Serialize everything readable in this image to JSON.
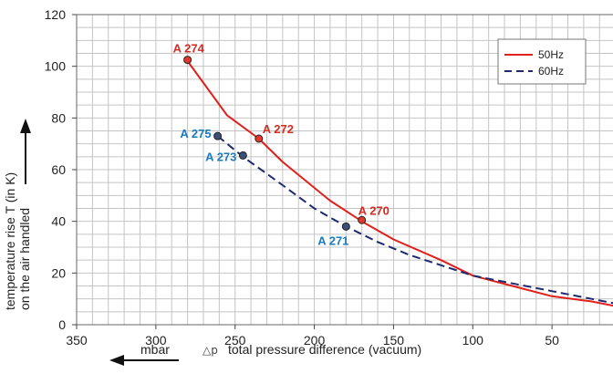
{
  "chart_data": {
    "type": "line",
    "xlabel_unit": "mbar",
    "xlabel_symbol": "△p",
    "xlabel": "total pressure difference (vacuum)",
    "ylabel_line1": "temperature rise T (in K)",
    "ylabel_line2": "on the air handled",
    "xlim": [
      350,
      0
    ],
    "ylim": [
      0,
      120
    ],
    "x_ticks": [
      "350",
      "300",
      "250",
      "200",
      "150",
      "100",
      "50",
      "0"
    ],
    "y_ticks": [
      "0",
      "20",
      "40",
      "60",
      "80",
      "100",
      "120"
    ],
    "grid": true,
    "legend_position": "top-right",
    "series": [
      {
        "name": "50Hz",
        "color": "#e0201b",
        "style": "solid",
        "x": [
          280,
          255,
          235,
          220,
          190,
          170,
          150,
          120,
          100,
          75,
          50,
          25,
          0
        ],
        "y": [
          102,
          81,
          72,
          63,
          48,
          40,
          33,
          25,
          19,
          15,
          11,
          9,
          6
        ]
      },
      {
        "name": "60Hz",
        "color": "#1d2a6e",
        "style": "dashed",
        "x": [
          261,
          245,
          220,
          200,
          180,
          160,
          140,
          120,
          100,
          75,
          50,
          25,
          0
        ],
        "y": [
          73,
          65,
          54,
          45,
          38,
          32,
          27,
          23,
          19,
          16,
          13,
          10,
          7
        ]
      }
    ],
    "annotations": [
      {
        "label": "A 274",
        "x": 280,
        "y": 102.5,
        "color": "#d62b20",
        "marker": "#e2382b"
      },
      {
        "label": "A 272",
        "x": 235,
        "y": 72,
        "color": "#d62b20",
        "marker": "#e2382b"
      },
      {
        "label": "A 270",
        "x": 170,
        "y": 40.5,
        "color": "#d62b20",
        "marker": "#e2382b"
      },
      {
        "label": "A 275",
        "x": 261,
        "y": 73,
        "color": "#1a7bbf",
        "marker": "#3b4f7a"
      },
      {
        "label": "A 273",
        "x": 245,
        "y": 65.5,
        "color": "#1a7bbf",
        "marker": "#3b4f7a"
      },
      {
        "label": "A 271",
        "x": 180,
        "y": 38,
        "color": "#1a7bbf",
        "marker": "#3b4f7a"
      }
    ]
  }
}
